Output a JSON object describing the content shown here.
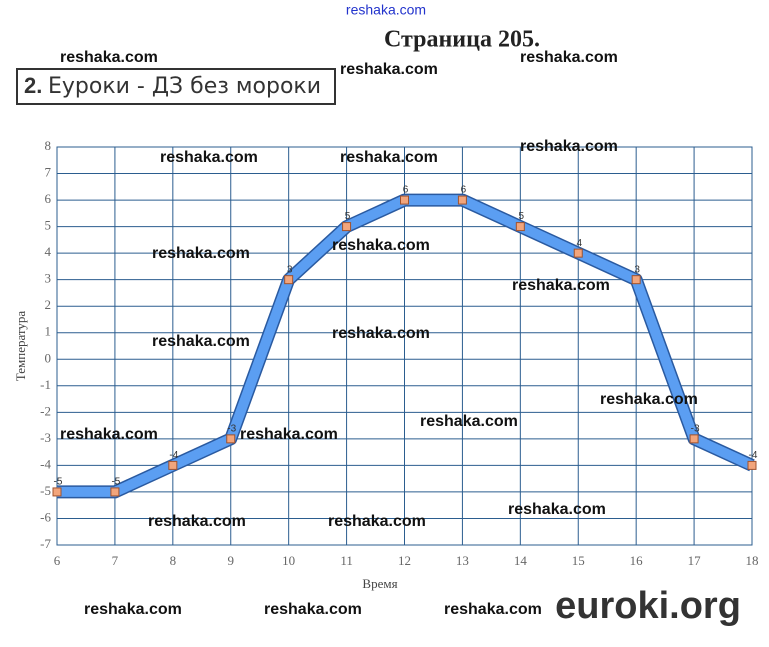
{
  "header": {
    "site": "reshaka.com",
    "page": "Страница 205.",
    "task_number": "2.",
    "task_title": "Еуроки - ДЗ без мороки",
    "logo": "euroki.org"
  },
  "watermarks": [
    "reshaka.com",
    "reshaka.com",
    "reshaka.com",
    "reshaka.com",
    "reshaka.com",
    "reshaka.com",
    "reshaka.com",
    "reshaka.com",
    "reshaka.com",
    "reshaka.com",
    "reshaka.com",
    "reshaka.com",
    "reshaka.com",
    "reshaka.com",
    "reshaka.com",
    "reshaka.com",
    "reshaka.com",
    "reshaka.com",
    "reshaka.com",
    "reshaka.com",
    "reshaka.com"
  ],
  "chart_data": {
    "type": "line",
    "x_label": "Время",
    "y_label": "Температура",
    "x": [
      6,
      7,
      8,
      9,
      10,
      11,
      12,
      13,
      14,
      15,
      16,
      17,
      18
    ],
    "values": [
      -5,
      -5,
      -4,
      -3,
      3,
      5,
      6,
      6,
      5,
      4,
      3,
      -3,
      -4
    ],
    "color": "#5b9ef2",
    "marker_color": "#f2a57c",
    "xlim": [
      6,
      18
    ],
    "xticks": [
      6,
      7,
      8,
      9,
      10,
      11,
      12,
      13,
      14,
      15,
      16,
      17,
      18
    ],
    "ylim": [
      -7,
      8
    ],
    "yticks": [
      -7,
      -6,
      -5,
      -4,
      -3,
      -2,
      -1,
      0,
      1,
      2,
      3,
      4,
      5,
      6,
      7,
      8
    ],
    "grid": true
  }
}
